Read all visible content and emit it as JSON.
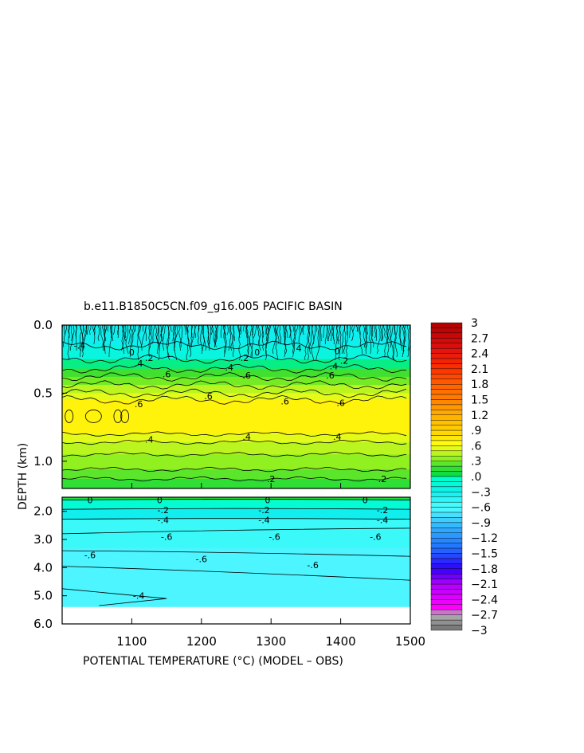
{
  "chart_data": {
    "type": "heatmap",
    "title": "b.e11.B1850C5CN.f09_g16.005 PACIFIC BASIN",
    "xlabel": "POTENTIAL TEMPERATURE (°C) (MODEL – OBS)",
    "ylabel": "DEPTH (km)",
    "xlim": [
      1000,
      1500
    ],
    "x_ticks": [
      "1100",
      "1200",
      "1300",
      "1400",
      "1500"
    ],
    "x_tick_values": [
      1100,
      1200,
      1300,
      1400,
      1500
    ],
    "upper_panel": {
      "ylim": [
        0.0,
        1.2
      ],
      "y_ticks": [
        "0.0",
        "0.5",
        "1.0"
      ],
      "y_tick_values": [
        0.0,
        0.5,
        1.0
      ],
      "bands": [
        {
          "from": 0.0,
          "to": 0.15,
          "value": -0.3
        },
        {
          "from": 0.15,
          "to": 0.25,
          "value": -0.2
        },
        {
          "from": 0.25,
          "to": 0.32,
          "value": 0.0
        },
        {
          "from": 0.32,
          "to": 0.38,
          "value": 0.2
        },
        {
          "from": 0.38,
          "to": 0.44,
          "value": 0.3
        },
        {
          "from": 0.44,
          "to": 0.5,
          "value": 0.45
        },
        {
          "from": 0.5,
          "to": 0.55,
          "value": 0.55
        },
        {
          "from": 0.55,
          "to": 0.8,
          "value": 0.7
        },
        {
          "from": 0.8,
          "to": 0.86,
          "value": 0.55
        },
        {
          "from": 0.86,
          "to": 0.95,
          "value": 0.45
        },
        {
          "from": 0.95,
          "to": 1.06,
          "value": 0.35
        },
        {
          "from": 1.06,
          "to": 1.13,
          "value": 0.25
        },
        {
          "from": 1.13,
          "to": 1.2,
          "value": 0.15
        }
      ],
      "contour_labels": [
        {
          "x": 1025,
          "y": 0.15,
          "text": "-.4"
        },
        {
          "x": 1100,
          "y": 0.2,
          "text": "0"
        },
        {
          "x": 1125,
          "y": 0.24,
          "text": ".2"
        },
        {
          "x": 1110,
          "y": 0.28,
          "text": ".4"
        },
        {
          "x": 1280,
          "y": 0.2,
          "text": "0"
        },
        {
          "x": 1262,
          "y": 0.24,
          "text": ".2"
        },
        {
          "x": 1240,
          "y": 0.31,
          "text": ".4"
        },
        {
          "x": 1340,
          "y": 0.17,
          "text": "4"
        },
        {
          "x": 1395,
          "y": 0.19,
          "text": "0"
        },
        {
          "x": 1405,
          "y": 0.26,
          "text": ".2"
        },
        {
          "x": 1390,
          "y": 0.3,
          "text": ".4"
        },
        {
          "x": 1150,
          "y": 0.36,
          "text": ".6"
        },
        {
          "x": 1265,
          "y": 0.37,
          "text": ".6"
        },
        {
          "x": 1385,
          "y": 0.37,
          "text": ".6"
        },
        {
          "x": 1110,
          "y": 0.58,
          "text": ".6"
        },
        {
          "x": 1210,
          "y": 0.52,
          "text": ".6"
        },
        {
          "x": 1320,
          "y": 0.56,
          "text": ".6"
        },
        {
          "x": 1400,
          "y": 0.57,
          "text": ".6"
        },
        {
          "x": 1125,
          "y": 0.84,
          "text": ".4"
        },
        {
          "x": 1265,
          "y": 0.82,
          "text": ".4"
        },
        {
          "x": 1395,
          "y": 0.82,
          "text": ".4"
        },
        {
          "x": 1300,
          "y": 1.13,
          "text": ".2"
        },
        {
          "x": 1460,
          "y": 1.13,
          "text": ".2"
        }
      ]
    },
    "lower_panel": {
      "ylim": [
        1.5,
        6.0
      ],
      "y_ticks": [
        "2.0",
        "3.0",
        "4.0",
        "5.0",
        "6.0"
      ],
      "y_tick_values": [
        2.0,
        3.0,
        4.0,
        5.0,
        6.0
      ],
      "data_bottom": 5.4,
      "bands": [
        {
          "from": 1.5,
          "to": 1.6,
          "value": 0.1
        },
        {
          "from": 1.6,
          "to": 1.9,
          "value": -0.1
        },
        {
          "from": 1.9,
          "to": 2.3,
          "value": -0.3
        },
        {
          "from": 2.3,
          "to": 3.3,
          "value": -0.5
        },
        {
          "from": 3.3,
          "to": 5.4,
          "value": -0.65
        }
      ],
      "contour_labels": [
        {
          "x": 1040,
          "y": 1.6,
          "text": "0"
        },
        {
          "x": 1140,
          "y": 1.6,
          "text": "0"
        },
        {
          "x": 1295,
          "y": 1.6,
          "text": "0"
        },
        {
          "x": 1435,
          "y": 1.6,
          "text": "0"
        },
        {
          "x": 1145,
          "y": 1.95,
          "text": "-.2"
        },
        {
          "x": 1290,
          "y": 1.95,
          "text": "-.2"
        },
        {
          "x": 1460,
          "y": 1.95,
          "text": "-.2"
        },
        {
          "x": 1145,
          "y": 2.3,
          "text": "-.4"
        },
        {
          "x": 1290,
          "y": 2.3,
          "text": "-.4"
        },
        {
          "x": 1460,
          "y": 2.3,
          "text": "-.4"
        },
        {
          "x": 1150,
          "y": 2.9,
          "text": "-.6"
        },
        {
          "x": 1305,
          "y": 2.9,
          "text": "-.6"
        },
        {
          "x": 1450,
          "y": 2.9,
          "text": "-.6"
        },
        {
          "x": 1040,
          "y": 3.55,
          "text": "-.6"
        },
        {
          "x": 1200,
          "y": 3.7,
          "text": "-.6"
        },
        {
          "x": 1360,
          "y": 3.9,
          "text": "-.6"
        },
        {
          "x": 1110,
          "y": 5.0,
          "text": "-.4"
        }
      ]
    },
    "colorbar": {
      "range": [
        -3,
        3
      ],
      "tick_labels": [
        "3",
        "2.7",
        "2.4",
        "2.1",
        "1.8",
        "1.5",
        "1.2",
        ".9",
        ".6",
        ".3",
        ".0",
        "−.3",
        "−.6",
        "−.9",
        "−1.2",
        "−1.5",
        "−1.8",
        "−2.1",
        "−2.4",
        "−2.7",
        "−3"
      ],
      "tick_values": [
        3,
        2.7,
        2.4,
        2.1,
        1.8,
        1.5,
        1.2,
        0.9,
        0.6,
        0.3,
        0,
        -0.3,
        -0.6,
        -0.9,
        -1.2,
        -1.5,
        -1.8,
        -2.1,
        -2.4,
        -2.7,
        -3
      ]
    },
    "grid": false
  }
}
